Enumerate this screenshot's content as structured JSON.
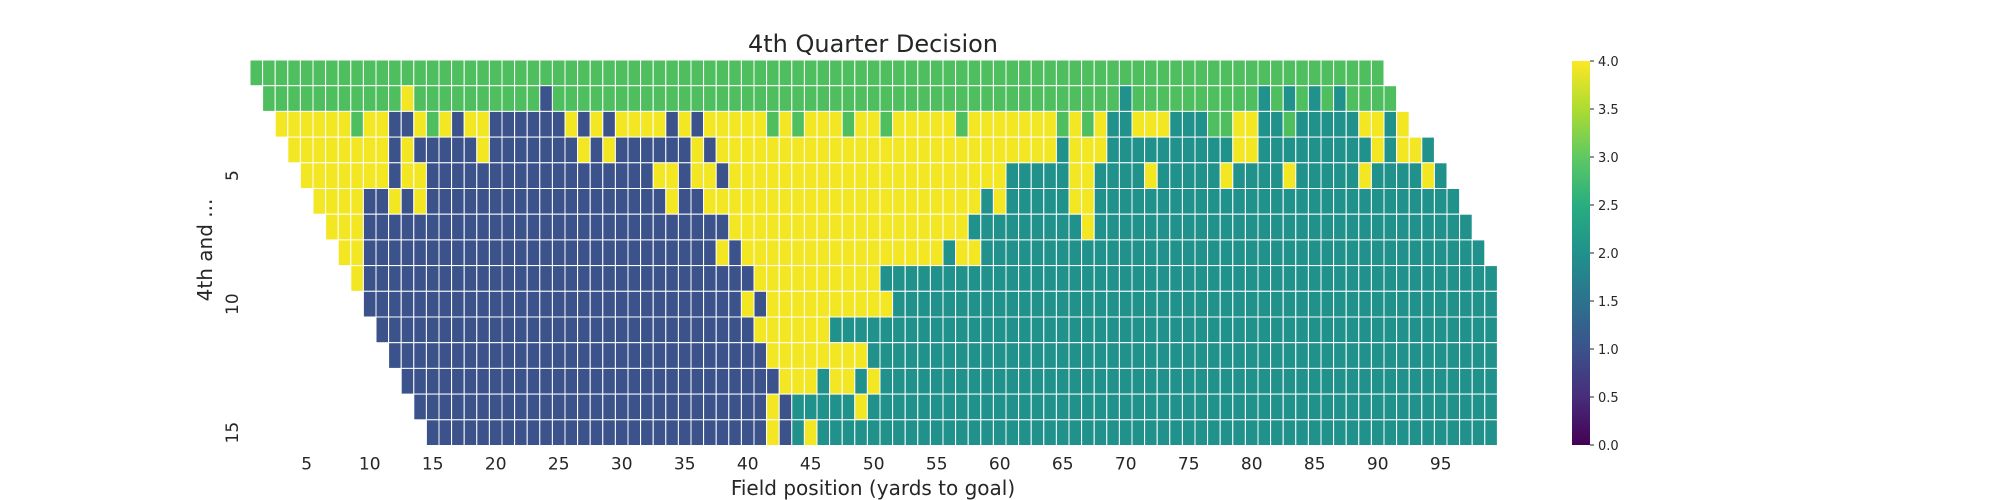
{
  "chart_data": {
    "type": "heatmap",
    "title": "4th Quarter Decision",
    "xlabel": "Field position (yards to goal)",
    "ylabel": "4th and ...",
    "x_tick_labels": [
      "5",
      "10",
      "15",
      "20",
      "25",
      "30",
      "35",
      "40",
      "45",
      "50",
      "55",
      "60",
      "65",
      "70",
      "75",
      "80",
      "85",
      "90",
      "95"
    ],
    "x_tick_values": [
      5,
      10,
      15,
      20,
      25,
      30,
      35,
      40,
      45,
      50,
      55,
      60,
      65,
      70,
      75,
      80,
      85,
      90,
      95
    ],
    "y_tick_labels": [
      "5",
      "10",
      "15"
    ],
    "y_tick_values": [
      5,
      10,
      15
    ],
    "x_range": [
      1,
      99
    ],
    "y_range": [
      1,
      15
    ],
    "colorbar": {
      "min": 0.0,
      "max": 4.0,
      "tick_labels": [
        "0.0",
        "0.5",
        "1.0",
        "1.5",
        "2.0",
        "2.5",
        "3.0",
        "3.5",
        "4.0"
      ],
      "tick_values": [
        0,
        0.5,
        1,
        1.5,
        2,
        2.5,
        3,
        3.5,
        4
      ],
      "colormap": "viridis"
    },
    "value_colors": {
      "1": "#3b528b",
      "2": "#21918c",
      "3": "#4fbe5e",
      "4": "#f3e622"
    },
    "rows": [
      {
        "down_distance": 1,
        "segments": [
          {
            "from": 1,
            "to": 90,
            "value": 3
          }
        ]
      },
      {
        "down_distance": 2,
        "segments": [
          {
            "from": 2,
            "to": 12,
            "value": 3
          },
          {
            "from": 13,
            "to": 13,
            "value": 4
          },
          {
            "from": 14,
            "to": 23,
            "value": 3
          },
          {
            "from": 24,
            "to": 24,
            "value": 1
          },
          {
            "from": 25,
            "to": 69,
            "value": 3
          },
          {
            "from": 70,
            "to": 70,
            "value": 2
          },
          {
            "from": 71,
            "to": 80,
            "value": 3
          },
          {
            "from": 81,
            "to": 81,
            "value": 2
          },
          {
            "from": 82,
            "to": 82,
            "value": 3
          },
          {
            "from": 83,
            "to": 83,
            "value": 2
          },
          {
            "from": 84,
            "to": 84,
            "value": 3
          },
          {
            "from": 85,
            "to": 85,
            "value": 2
          },
          {
            "from": 86,
            "to": 86,
            "value": 3
          },
          {
            "from": 87,
            "to": 87,
            "value": 2
          },
          {
            "from": 88,
            "to": 91,
            "value": 3
          }
        ]
      },
      {
        "down_distance": 3,
        "segments": [
          {
            "from": 3,
            "to": 8,
            "value": 4
          },
          {
            "from": 9,
            "to": 9,
            "value": 3
          },
          {
            "from": 10,
            "to": 11,
            "value": 4
          },
          {
            "from": 12,
            "to": 13,
            "value": 1
          },
          {
            "from": 14,
            "to": 14,
            "value": 4
          },
          {
            "from": 15,
            "to": 15,
            "value": 3
          },
          {
            "from": 16,
            "to": 16,
            "value": 4
          },
          {
            "from": 17,
            "to": 17,
            "value": 1
          },
          {
            "from": 18,
            "to": 19,
            "value": 4
          },
          {
            "from": 20,
            "to": 25,
            "value": 1
          },
          {
            "from": 26,
            "to": 26,
            "value": 4
          },
          {
            "from": 27,
            "to": 27,
            "value": 1
          },
          {
            "from": 28,
            "to": 28,
            "value": 4
          },
          {
            "from": 29,
            "to": 29,
            "value": 1
          },
          {
            "from": 30,
            "to": 33,
            "value": 4
          },
          {
            "from": 34,
            "to": 34,
            "value": 1
          },
          {
            "from": 35,
            "to": 35,
            "value": 4
          },
          {
            "from": 36,
            "to": 36,
            "value": 1
          },
          {
            "from": 37,
            "to": 41,
            "value": 4
          },
          {
            "from": 42,
            "to": 42,
            "value": 3
          },
          {
            "from": 43,
            "to": 43,
            "value": 4
          },
          {
            "from": 44,
            "to": 44,
            "value": 3
          },
          {
            "from": 45,
            "to": 47,
            "value": 4
          },
          {
            "from": 48,
            "to": 48,
            "value": 3
          },
          {
            "from": 49,
            "to": 50,
            "value": 4
          },
          {
            "from": 51,
            "to": 51,
            "value": 3
          },
          {
            "from": 52,
            "to": 56,
            "value": 4
          },
          {
            "from": 57,
            "to": 57,
            "value": 3
          },
          {
            "from": 58,
            "to": 64,
            "value": 4
          },
          {
            "from": 65,
            "to": 65,
            "value": 3
          },
          {
            "from": 66,
            "to": 66,
            "value": 4
          },
          {
            "from": 67,
            "to": 67,
            "value": 3
          },
          {
            "from": 68,
            "to": 68,
            "value": 4
          },
          {
            "from": 69,
            "to": 70,
            "value": 2
          },
          {
            "from": 71,
            "to": 73,
            "value": 4
          },
          {
            "from": 74,
            "to": 76,
            "value": 2
          },
          {
            "from": 77,
            "to": 78,
            "value": 3
          },
          {
            "from": 79,
            "to": 80,
            "value": 4
          },
          {
            "from": 81,
            "to": 82,
            "value": 2
          },
          {
            "from": 83,
            "to": 83,
            "value": 3
          },
          {
            "from": 84,
            "to": 88,
            "value": 2
          },
          {
            "from": 89,
            "to": 90,
            "value": 4
          },
          {
            "from": 91,
            "to": 91,
            "value": 2
          },
          {
            "from": 92,
            "to": 92,
            "value": 4
          }
        ]
      },
      {
        "down_distance": 4,
        "segments": [
          {
            "from": 4,
            "to": 11,
            "value": 4
          },
          {
            "from": 12,
            "to": 12,
            "value": 1
          },
          {
            "from": 13,
            "to": 13,
            "value": 4
          },
          {
            "from": 14,
            "to": 18,
            "value": 1
          },
          {
            "from": 19,
            "to": 19,
            "value": 4
          },
          {
            "from": 20,
            "to": 26,
            "value": 1
          },
          {
            "from": 27,
            "to": 27,
            "value": 4
          },
          {
            "from": 28,
            "to": 28,
            "value": 1
          },
          {
            "from": 29,
            "to": 29,
            "value": 4
          },
          {
            "from": 30,
            "to": 35,
            "value": 1
          },
          {
            "from": 36,
            "to": 36,
            "value": 4
          },
          {
            "from": 37,
            "to": 37,
            "value": 1
          },
          {
            "from": 38,
            "to": 64,
            "value": 4
          },
          {
            "from": 65,
            "to": 65,
            "value": 2
          },
          {
            "from": 66,
            "to": 68,
            "value": 4
          },
          {
            "from": 69,
            "to": 78,
            "value": 2
          },
          {
            "from": 79,
            "to": 80,
            "value": 4
          },
          {
            "from": 81,
            "to": 89,
            "value": 2
          },
          {
            "from": 90,
            "to": 90,
            "value": 4
          },
          {
            "from": 91,
            "to": 91,
            "value": 2
          },
          {
            "from": 92,
            "to": 93,
            "value": 4
          },
          {
            "from": 94,
            "to": 94,
            "value": 2
          }
        ]
      },
      {
        "down_distance": 5,
        "segments": [
          {
            "from": 5,
            "to": 11,
            "value": 4
          },
          {
            "from": 12,
            "to": 12,
            "value": 1
          },
          {
            "from": 13,
            "to": 14,
            "value": 4
          },
          {
            "from": 15,
            "to": 32,
            "value": 1
          },
          {
            "from": 33,
            "to": 34,
            "value": 4
          },
          {
            "from": 35,
            "to": 35,
            "value": 1
          },
          {
            "from": 36,
            "to": 37,
            "value": 4
          },
          {
            "from": 38,
            "to": 38,
            "value": 1
          },
          {
            "from": 39,
            "to": 60,
            "value": 4
          },
          {
            "from": 61,
            "to": 65,
            "value": 2
          },
          {
            "from": 66,
            "to": 67,
            "value": 4
          },
          {
            "from": 68,
            "to": 71,
            "value": 2
          },
          {
            "from": 72,
            "to": 72,
            "value": 4
          },
          {
            "from": 73,
            "to": 77,
            "value": 2
          },
          {
            "from": 78,
            "to": 78,
            "value": 4
          },
          {
            "from": 79,
            "to": 82,
            "value": 2
          },
          {
            "from": 83,
            "to": 83,
            "value": 4
          },
          {
            "from": 84,
            "to": 88,
            "value": 2
          },
          {
            "from": 89,
            "to": 89,
            "value": 4
          },
          {
            "from": 90,
            "to": 93,
            "value": 2
          },
          {
            "from": 94,
            "to": 94,
            "value": 4
          },
          {
            "from": 95,
            "to": 95,
            "value": 2
          }
        ]
      },
      {
        "down_distance": 6,
        "segments": [
          {
            "from": 6,
            "to": 9,
            "value": 4
          },
          {
            "from": 10,
            "to": 11,
            "value": 1
          },
          {
            "from": 12,
            "to": 12,
            "value": 4
          },
          {
            "from": 13,
            "to": 13,
            "value": 1
          },
          {
            "from": 14,
            "to": 14,
            "value": 4
          },
          {
            "from": 15,
            "to": 33,
            "value": 1
          },
          {
            "from": 34,
            "to": 34,
            "value": 4
          },
          {
            "from": 35,
            "to": 36,
            "value": 1
          },
          {
            "from": 37,
            "to": 38,
            "value": 4
          },
          {
            "from": 39,
            "to": 58,
            "value": 4
          },
          {
            "from": 59,
            "to": 59,
            "value": 2
          },
          {
            "from": 60,
            "to": 60,
            "value": 4
          },
          {
            "from": 61,
            "to": 65,
            "value": 2
          },
          {
            "from": 66,
            "to": 67,
            "value": 4
          },
          {
            "from": 68,
            "to": 96,
            "value": 2
          }
        ]
      },
      {
        "down_distance": 7,
        "segments": [
          {
            "from": 7,
            "to": 9,
            "value": 4
          },
          {
            "from": 10,
            "to": 38,
            "value": 1
          },
          {
            "from": 39,
            "to": 57,
            "value": 4
          },
          {
            "from": 58,
            "to": 66,
            "value": 2
          },
          {
            "from": 67,
            "to": 67,
            "value": 4
          },
          {
            "from": 68,
            "to": 97,
            "value": 2
          }
        ]
      },
      {
        "down_distance": 8,
        "segments": [
          {
            "from": 8,
            "to": 9,
            "value": 4
          },
          {
            "from": 10,
            "to": 37,
            "value": 1
          },
          {
            "from": 38,
            "to": 38,
            "value": 4
          },
          {
            "from": 39,
            "to": 39,
            "value": 1
          },
          {
            "from": 40,
            "to": 55,
            "value": 4
          },
          {
            "from": 56,
            "to": 56,
            "value": 2
          },
          {
            "from": 57,
            "to": 58,
            "value": 4
          },
          {
            "from": 59,
            "to": 98,
            "value": 2
          }
        ]
      },
      {
        "down_distance": 9,
        "segments": [
          {
            "from": 9,
            "to": 9,
            "value": 4
          },
          {
            "from": 10,
            "to": 40,
            "value": 1
          },
          {
            "from": 41,
            "to": 50,
            "value": 4
          },
          {
            "from": 51,
            "to": 99,
            "value": 2
          }
        ]
      },
      {
        "down_distance": 10,
        "segments": [
          {
            "from": 10,
            "to": 39,
            "value": 1
          },
          {
            "from": 40,
            "to": 40,
            "value": 4
          },
          {
            "from": 41,
            "to": 41,
            "value": 1
          },
          {
            "from": 42,
            "to": 51,
            "value": 4
          },
          {
            "from": 52,
            "to": 99,
            "value": 2
          }
        ]
      },
      {
        "down_distance": 11,
        "segments": [
          {
            "from": 11,
            "to": 40,
            "value": 1
          },
          {
            "from": 41,
            "to": 46,
            "value": 4
          },
          {
            "from": 47,
            "to": 99,
            "value": 2
          }
        ]
      },
      {
        "down_distance": 12,
        "segments": [
          {
            "from": 12,
            "to": 41,
            "value": 1
          },
          {
            "from": 42,
            "to": 49,
            "value": 4
          },
          {
            "from": 50,
            "to": 99,
            "value": 2
          }
        ]
      },
      {
        "down_distance": 13,
        "segments": [
          {
            "from": 13,
            "to": 42,
            "value": 1
          },
          {
            "from": 43,
            "to": 45,
            "value": 4
          },
          {
            "from": 46,
            "to": 46,
            "value": 2
          },
          {
            "from": 47,
            "to": 48,
            "value": 4
          },
          {
            "from": 49,
            "to": 49,
            "value": 2
          },
          {
            "from": 50,
            "to": 50,
            "value": 4
          },
          {
            "from": 51,
            "to": 99,
            "value": 2
          }
        ]
      },
      {
        "down_distance": 14,
        "segments": [
          {
            "from": 14,
            "to": 41,
            "value": 1
          },
          {
            "from": 42,
            "to": 42,
            "value": 4
          },
          {
            "from": 43,
            "to": 43,
            "value": 1
          },
          {
            "from": 44,
            "to": 48,
            "value": 2
          },
          {
            "from": 49,
            "to": 49,
            "value": 4
          },
          {
            "from": 50,
            "to": 99,
            "value": 2
          }
        ]
      },
      {
        "down_distance": 15,
        "segments": [
          {
            "from": 15,
            "to": 41,
            "value": 1
          },
          {
            "from": 42,
            "to": 42,
            "value": 4
          },
          {
            "from": 43,
            "to": 43,
            "value": 1
          },
          {
            "from": 44,
            "to": 44,
            "value": 2
          },
          {
            "from": 45,
            "to": 45,
            "value": 4
          },
          {
            "from": 46,
            "to": 99,
            "value": 2
          }
        ]
      }
    ]
  }
}
